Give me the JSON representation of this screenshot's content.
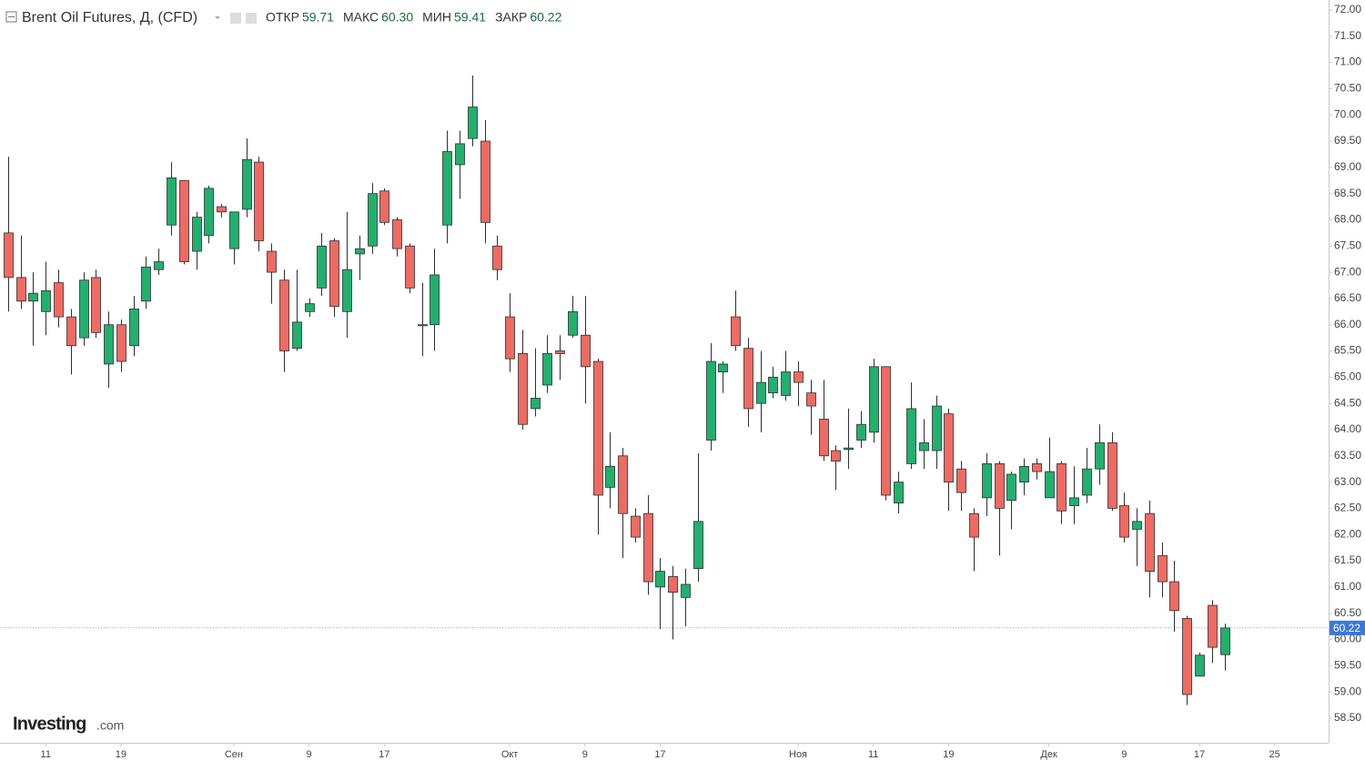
{
  "chart_data": {
    "type": "candlestick",
    "title": "Brent Oil Futures, Д, (CFD)",
    "ohlc_legend": [
      {
        "label": "ОТКР",
        "value": "59.71"
      },
      {
        "label": "МАКС",
        "value": "60.30"
      },
      {
        "label": "МИН",
        "value": "59.41"
      },
      {
        "label": "ЗАКР",
        "value": "60.22"
      }
    ],
    "logo": "Investing",
    "logo_suffix": ".com",
    "up_color": "#21b06e",
    "down_color": "#ef6a62",
    "categories": [
      null,
      null,
      null,
      "11",
      null,
      null,
      null,
      null,
      null,
      "19",
      null,
      null,
      null,
      null,
      null,
      null,
      null,
      null,
      "Сен",
      null,
      null,
      null,
      null,
      null,
      "9",
      null,
      null,
      null,
      null,
      null,
      "17",
      null,
      null,
      null,
      null,
      null,
      null,
      null,
      null,
      null,
      "Окт",
      null,
      null,
      null,
      null,
      null,
      "9",
      null,
      null,
      null,
      null,
      null,
      "17",
      null,
      null,
      null,
      null,
      null,
      null,
      null,
      null,
      null,
      null,
      "Ноя",
      null,
      null,
      null,
      null,
      null,
      "11",
      null,
      null,
      null,
      null,
      null,
      "19",
      null,
      null,
      null,
      null,
      null,
      null,
      null,
      "Дек",
      null,
      null,
      null,
      null,
      null,
      "9",
      null,
      null,
      null,
      null,
      null,
      "17",
      null,
      null,
      null,
      null,
      null,
      "25"
    ],
    "open": [
      67.75,
      66.9,
      66.45,
      66.25,
      66.8,
      66.15,
      65.75,
      66.9,
      65.25,
      66.0,
      65.6,
      66.45,
      67.05,
      67.9,
      68.75,
      67.4,
      67.7,
      68.25,
      67.45,
      68.2,
      69.1,
      67.4,
      66.85,
      65.55,
      66.25,
      66.7,
      67.6,
      66.25,
      67.35,
      67.5,
      68.55,
      68.0,
      67.5,
      66.0,
      66.0,
      67.9,
      69.05,
      69.55,
      69.5,
      67.5,
      66.15,
      65.45,
      64.4,
      64.85,
      65.5,
      65.8,
      65.8,
      65.3,
      62.9,
      63.5,
      62.35,
      62.4,
      61.0,
      61.2,
      60.8,
      61.35,
      63.8,
      65.1,
      66.15,
      65.55,
      64.5,
      64.7,
      64.65,
      65.1,
      64.7,
      64.2,
      63.6,
      63.62,
      63.8,
      63.95,
      65.2,
      62.6,
      63.35,
      63.6,
      63.6,
      64.3,
      63.25,
      62.4,
      62.7,
      63.35,
      62.65,
      63.0,
      63.35,
      62.7,
      63.35,
      62.55,
      62.75,
      63.25,
      63.75,
      62.55,
      62.1,
      62.4,
      61.6,
      61.1,
      60.4,
      59.3,
      60.65,
      59.71,
      null,
      null,
      null,
      null
    ],
    "high": [
      69.2,
      67.7,
      67.0,
      67.2,
      67.05,
      66.3,
      67.0,
      67.05,
      66.25,
      66.1,
      66.55,
      67.3,
      67.45,
      69.1,
      68.75,
      68.15,
      68.65,
      68.3,
      68.15,
      69.55,
      69.2,
      67.55,
      67.05,
      67.05,
      66.5,
      67.75,
      67.65,
      68.15,
      67.7,
      68.7,
      68.6,
      68.05,
      67.55,
      66.8,
      67.45,
      69.7,
      69.7,
      70.75,
      69.9,
      67.7,
      66.6,
      65.9,
      65.55,
      65.8,
      65.8,
      66.55,
      66.55,
      65.35,
      63.95,
      63.65,
      62.5,
      62.75,
      61.55,
      61.4,
      61.35,
      63.55,
      65.65,
      65.3,
      66.65,
      65.75,
      65.5,
      65.2,
      65.5,
      65.3,
      64.95,
      64.95,
      63.7,
      64.4,
      64.35,
      65.35,
      65.2,
      63.2,
      64.9,
      64.2,
      64.65,
      64.4,
      63.4,
      62.5,
      63.55,
      63.4,
      63.2,
      63.45,
      63.45,
      63.85,
      63.4,
      63.3,
      63.65,
      64.1,
      63.95,
      62.8,
      62.5,
      62.65,
      61.85,
      61.5,
      60.45,
      59.75,
      60.75,
      60.3,
      null,
      null,
      null,
      null
    ],
    "low": [
      66.25,
      66.3,
      65.6,
      65.8,
      65.95,
      65.05,
      65.6,
      65.75,
      64.8,
      65.1,
      65.4,
      66.3,
      66.95,
      67.7,
      67.15,
      67.05,
      67.55,
      68.05,
      67.15,
      68.05,
      67.4,
      66.4,
      65.1,
      65.5,
      66.15,
      66.55,
      66.15,
      65.75,
      66.85,
      67.35,
      67.9,
      67.3,
      66.6,
      65.4,
      65.5,
      67.55,
      68.4,
      69.4,
      67.55,
      66.85,
      65.1,
      64.0,
      64.25,
      64.7,
      64.95,
      65.75,
      64.5,
      62.0,
      62.5,
      61.55,
      61.85,
      60.85,
      60.2,
      60.0,
      60.25,
      61.1,
      63.6,
      64.7,
      65.5,
      64.05,
      63.95,
      64.6,
      64.55,
      64.45,
      63.9,
      63.4,
      62.85,
      63.25,
      63.65,
      63.75,
      62.65,
      62.4,
      63.25,
      63.25,
      63.25,
      62.45,
      62.45,
      61.3,
      62.35,
      61.6,
      62.1,
      62.75,
      63.05,
      62.7,
      62.2,
      62.2,
      62.6,
      62.95,
      62.45,
      61.85,
      61.4,
      60.8,
      60.8,
      60.15,
      58.75,
      59.3,
      59.55,
      59.41,
      null,
      null,
      null,
      null
    ],
    "close": [
      66.9,
      66.45,
      66.6,
      66.65,
      66.15,
      65.6,
      66.85,
      65.85,
      66.0,
      65.3,
      66.3,
      67.1,
      67.2,
      68.8,
      67.2,
      68.05,
      68.6,
      68.15,
      68.15,
      69.15,
      67.6,
      67.0,
      65.5,
      66.05,
      66.4,
      67.5,
      66.35,
      67.05,
      67.45,
      68.5,
      67.95,
      67.45,
      66.7,
      65.98,
      66.95,
      69.3,
      69.45,
      70.15,
      67.95,
      67.05,
      65.35,
      64.1,
      64.6,
      65.45,
      65.45,
      66.25,
      65.2,
      62.75,
      63.3,
      62.4,
      61.95,
      61.1,
      61.3,
      60.9,
      61.05,
      62.25,
      65.3,
      65.25,
      65.6,
      64.4,
      64.9,
      65.0,
      65.1,
      64.9,
      64.45,
      63.5,
      63.4,
      63.65,
      64.1,
      65.2,
      62.75,
      63.0,
      64.4,
      63.75,
      64.45,
      63.0,
      62.8,
      61.95,
      63.35,
      62.5,
      63.15,
      63.3,
      63.2,
      63.2,
      62.45,
      62.7,
      63.25,
      63.75,
      62.5,
      61.95,
      62.25,
      61.3,
      61.1,
      60.55,
      58.95,
      59.7,
      59.85,
      60.22,
      null,
      null,
      null,
      null
    ],
    "current_price": {
      "value": 60.22,
      "label": "60.22"
    },
    "current_price_color": "#3a78d8",
    "ylim": [
      58.03,
      72.19
    ],
    "yticks": [
      {
        "value": 58.5,
        "label": "58.50"
      },
      {
        "value": 59,
        "label": "59.00"
      },
      {
        "value": 59.5,
        "label": "59.50"
      },
      {
        "value": 60,
        "label": "60.00"
      },
      {
        "value": 60.5,
        "label": "60.50"
      },
      {
        "value": 61,
        "label": "61.00"
      },
      {
        "value": 61.5,
        "label": "61.50"
      },
      {
        "value": 62,
        "label": "62.00"
      },
      {
        "value": 62.5,
        "label": "62.50"
      },
      {
        "value": 63,
        "label": "63.00"
      },
      {
        "value": 63.5,
        "label": "63.50"
      },
      {
        "value": 64,
        "label": "64.00"
      },
      {
        "value": 64.5,
        "label": "64.50"
      },
      {
        "value": 65,
        "label": "65.00"
      },
      {
        "value": 65.5,
        "label": "65.50"
      },
      {
        "value": 66,
        "label": "66.00"
      },
      {
        "value": 66.5,
        "label": "66.50"
      },
      {
        "value": 67,
        "label": "67.00"
      },
      {
        "value": 67.5,
        "label": "67.50"
      },
      {
        "value": 68,
        "label": "68.00"
      },
      {
        "value": 68.5,
        "label": "68.50"
      },
      {
        "value": 69,
        "label": "69.00"
      },
      {
        "value": 69.5,
        "label": "69.50"
      },
      {
        "value": 70,
        "label": "70.00"
      },
      {
        "value": 70.5,
        "label": "70.50"
      },
      {
        "value": 71,
        "label": "71.00"
      },
      {
        "value": 71.5,
        "label": "71.50"
      },
      {
        "value": 72,
        "label": "72.00"
      }
    ]
  }
}
